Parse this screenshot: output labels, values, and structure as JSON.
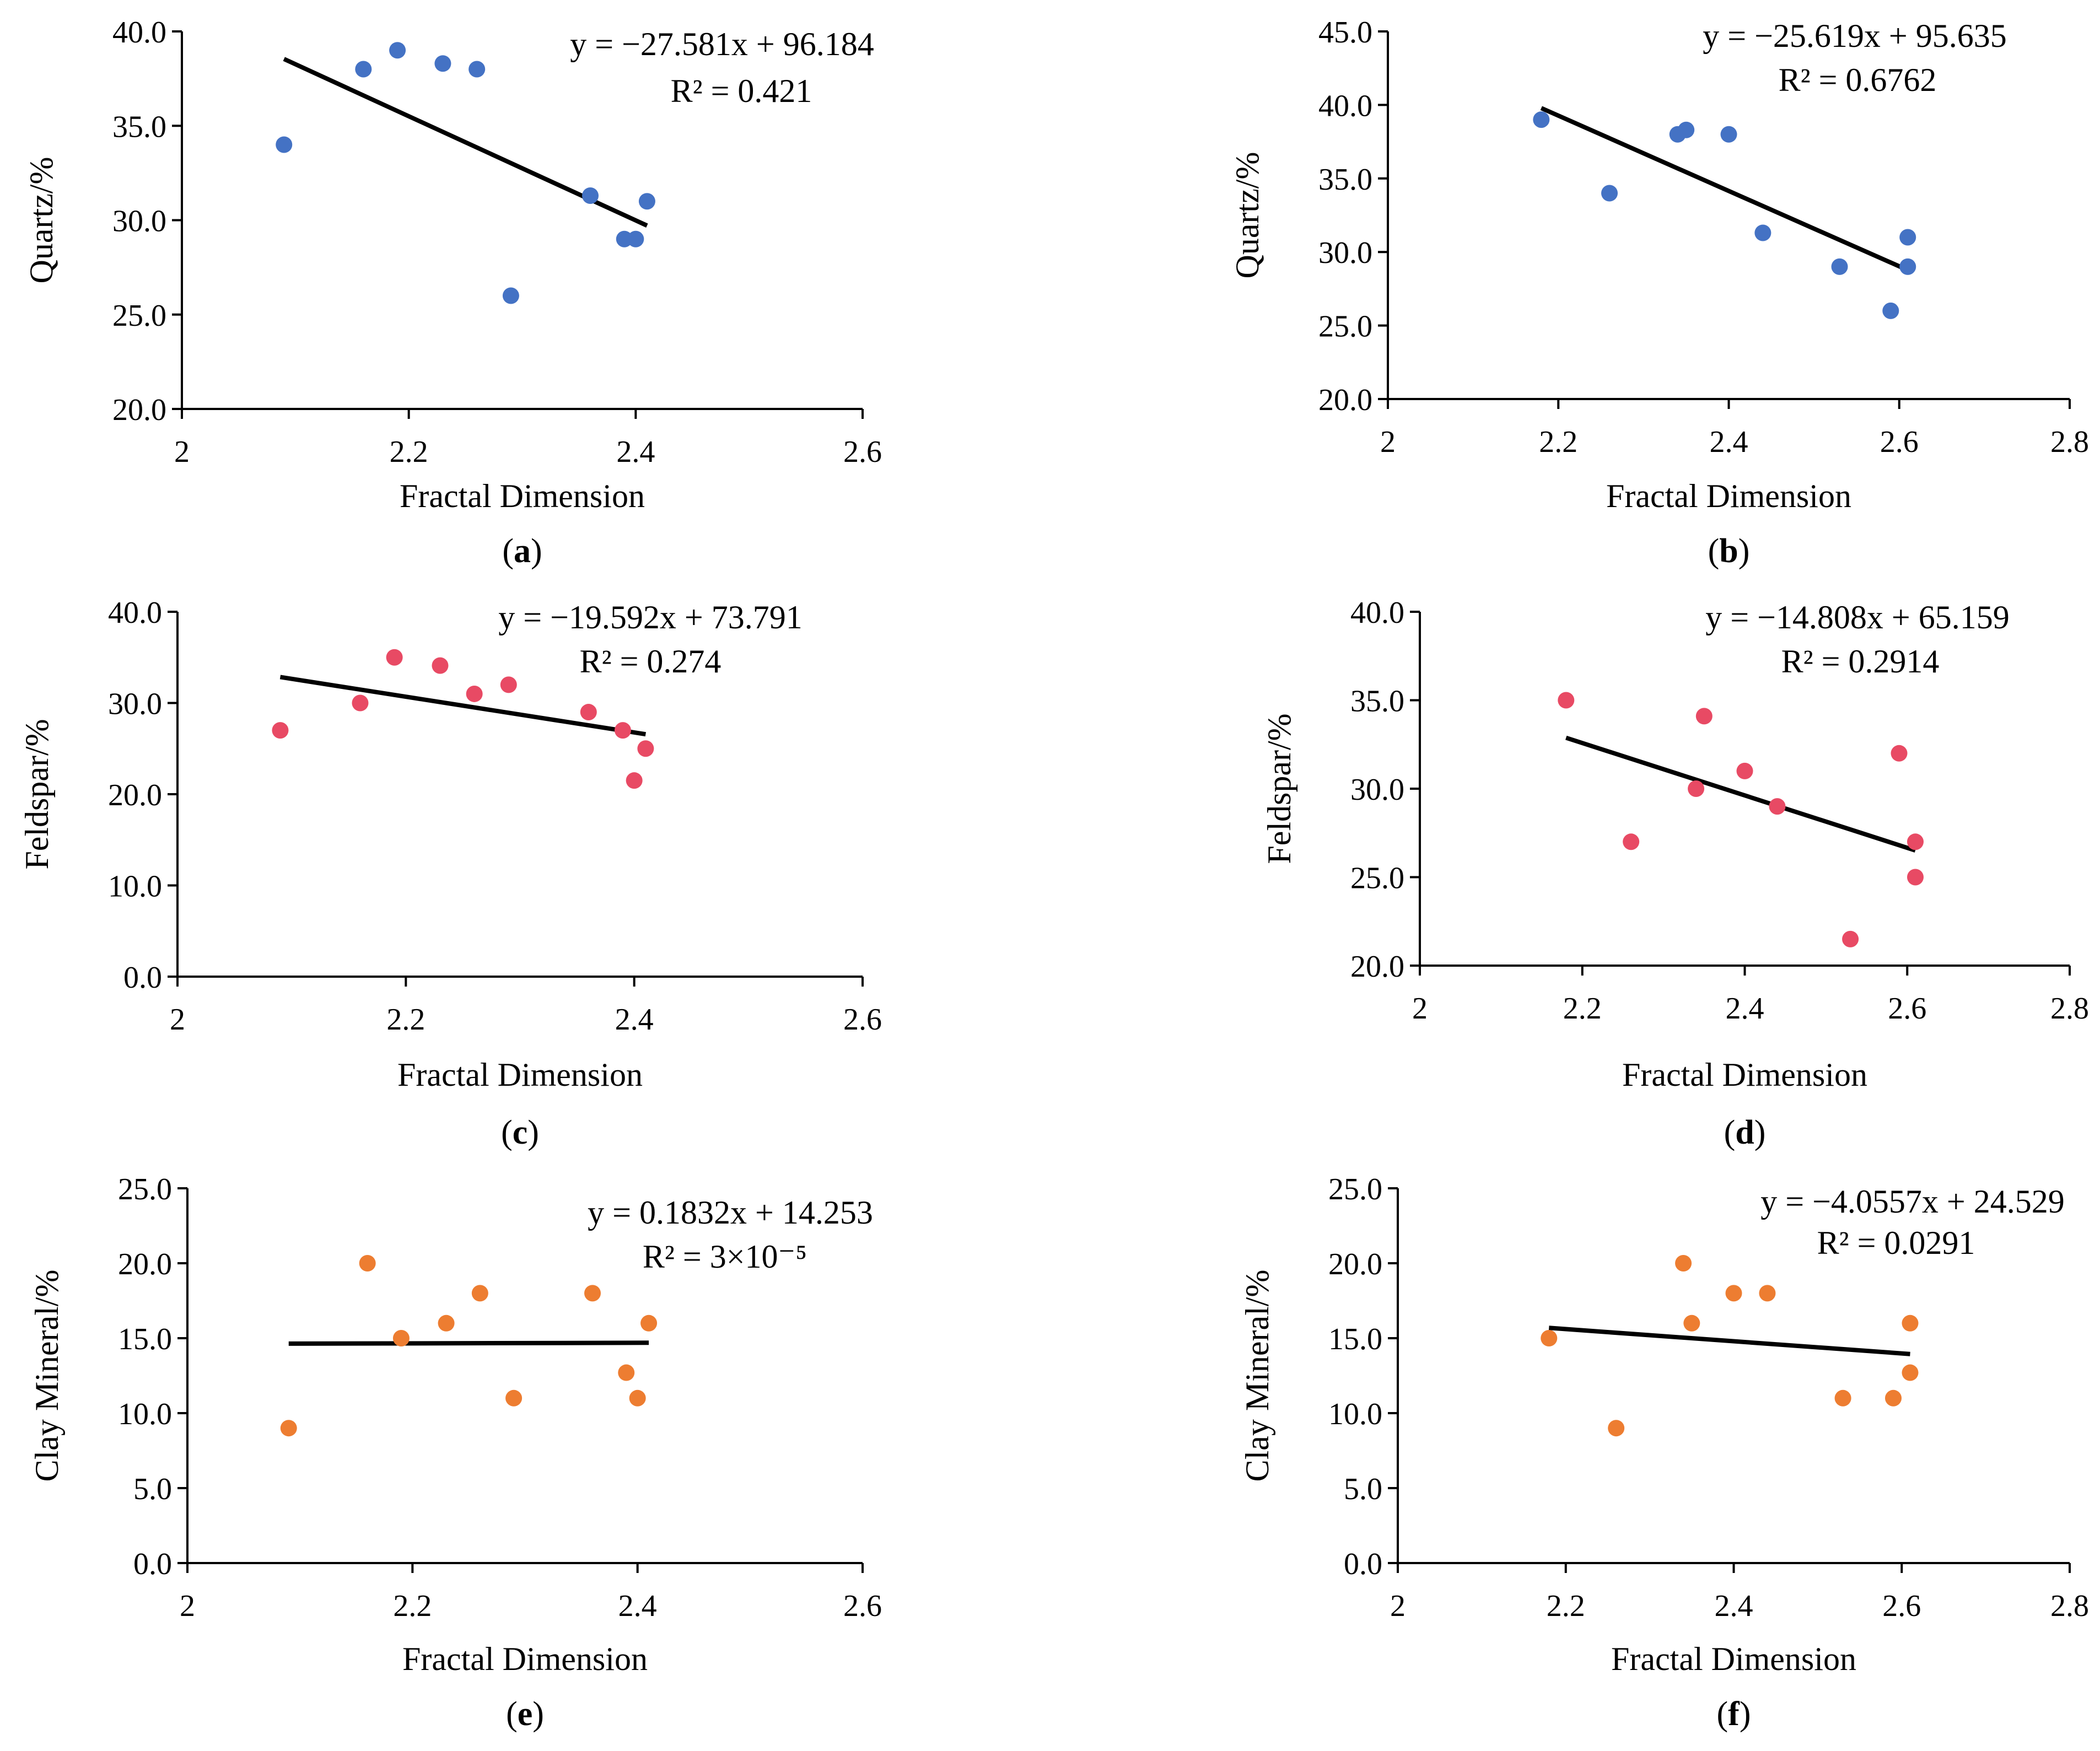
{
  "figure": {
    "colors": {
      "quartz": "#4472C4",
      "feldspar": "#E84A64",
      "clay": "#ED7D31",
      "trend": "#000000"
    }
  },
  "chart_data": [
    {
      "type": "scatter",
      "panel_label": "a",
      "xlabel": "Fractal Dimension",
      "ylabel": "Quartz/%",
      "xlim": [
        2,
        2.6
      ],
      "ylim": [
        20,
        40
      ],
      "xticks": [
        "2",
        "2.2",
        "2.4",
        "2.6"
      ],
      "yticks": [
        "20.0",
        "25.0",
        "30.0",
        "35.0",
        "40.0"
      ],
      "color": "#4472C4",
      "points": [
        {
          "x": 2.09,
          "y": 34.0
        },
        {
          "x": 2.16,
          "y": 38.0
        },
        {
          "x": 2.19,
          "y": 39.0
        },
        {
          "x": 2.23,
          "y": 38.3
        },
        {
          "x": 2.26,
          "y": 38.0
        },
        {
          "x": 2.29,
          "y": 26.0
        },
        {
          "x": 2.36,
          "y": 31.3
        },
        {
          "x": 2.39,
          "y": 29.0
        },
        {
          "x": 2.4,
          "y": 29.0
        },
        {
          "x": 2.41,
          "y": 31.0
        }
      ],
      "trendline": {
        "slope": -27.581,
        "intercept": 96.184,
        "x_range": [
          2.09,
          2.41
        ]
      },
      "equation": "y = −27.581x + 96.184",
      "r2": "R² = 0.421"
    },
    {
      "type": "scatter",
      "panel_label": "b",
      "xlabel": "Fractal Dimension",
      "ylabel": "Quartz/%",
      "xlim": [
        2,
        2.8
      ],
      "ylim": [
        20,
        45
      ],
      "xticks": [
        "2",
        "2.2",
        "2.4",
        "2.6",
        "2.8"
      ],
      "yticks": [
        "20.0",
        "25.0",
        "30.0",
        "35.0",
        "40.0",
        "45.0"
      ],
      "color": "#4472C4",
      "points": [
        {
          "x": 2.18,
          "y": 39.0
        },
        {
          "x": 2.26,
          "y": 34.0
        },
        {
          "x": 2.34,
          "y": 38.0
        },
        {
          "x": 2.35,
          "y": 38.3
        },
        {
          "x": 2.4,
          "y": 38.0
        },
        {
          "x": 2.44,
          "y": 31.3
        },
        {
          "x": 2.53,
          "y": 29.0
        },
        {
          "x": 2.59,
          "y": 26.0
        },
        {
          "x": 2.61,
          "y": 31.0
        },
        {
          "x": 2.61,
          "y": 29.0
        }
      ],
      "trendline": {
        "slope": -25.619,
        "intercept": 95.635,
        "x_range": [
          2.18,
          2.61
        ]
      },
      "equation": "y = −25.619x + 95.635",
      "r2": "R² = 0.6762"
    },
    {
      "type": "scatter",
      "panel_label": "c",
      "xlabel": "Fractal Dimension",
      "ylabel": "Feldspar/%",
      "xlim": [
        2,
        2.6
      ],
      "ylim": [
        0,
        40
      ],
      "xticks": [
        "2",
        "2.2",
        "2.4",
        "2.6"
      ],
      "yticks": [
        "0.0",
        "10.0",
        "20.0",
        "30.0",
        "40.0"
      ],
      "color": "#E84A64",
      "points": [
        {
          "x": 2.09,
          "y": 27.0
        },
        {
          "x": 2.16,
          "y": 30.0
        },
        {
          "x": 2.19,
          "y": 35.0
        },
        {
          "x": 2.23,
          "y": 34.1
        },
        {
          "x": 2.26,
          "y": 31.0
        },
        {
          "x": 2.29,
          "y": 32.0
        },
        {
          "x": 2.36,
          "y": 29.0
        },
        {
          "x": 2.39,
          "y": 27.0
        },
        {
          "x": 2.4,
          "y": 21.5
        },
        {
          "x": 2.41,
          "y": 25.0
        }
      ],
      "trendline": {
        "slope": -19.592,
        "intercept": 73.791,
        "x_range": [
          2.09,
          2.41
        ]
      },
      "equation": "y = −19.592x + 73.791",
      "r2": "R² = 0.274"
    },
    {
      "type": "scatter",
      "panel_label": "d",
      "xlabel": "Fractal Dimension",
      "ylabel": "Feldspar/%",
      "xlim": [
        2,
        2.8
      ],
      "ylim": [
        20,
        40
      ],
      "xticks": [
        "2",
        "2.2",
        "2.4",
        "2.6",
        "2.8"
      ],
      "yticks": [
        "20.0",
        "25.0",
        "30.0",
        "35.0",
        "40.0"
      ],
      "color": "#E84A64",
      "points": [
        {
          "x": 2.18,
          "y": 35.0
        },
        {
          "x": 2.26,
          "y": 27.0
        },
        {
          "x": 2.34,
          "y": 30.0
        },
        {
          "x": 2.35,
          "y": 34.1
        },
        {
          "x": 2.4,
          "y": 31.0
        },
        {
          "x": 2.44,
          "y": 29.0
        },
        {
          "x": 2.53,
          "y": 21.5
        },
        {
          "x": 2.59,
          "y": 32.0
        },
        {
          "x": 2.61,
          "y": 27.0
        },
        {
          "x": 2.61,
          "y": 25.0
        }
      ],
      "trendline": {
        "slope": -14.808,
        "intercept": 65.159,
        "x_range": [
          2.18,
          2.61
        ]
      },
      "equation": "y = −14.808x + 65.159",
      "r2": "R² = 0.2914"
    },
    {
      "type": "scatter",
      "panel_label": "e",
      "xlabel": "Fractal Dimension",
      "ylabel": "Clay Mineral/%",
      "xlim": [
        2,
        2.6
      ],
      "ylim": [
        0,
        25
      ],
      "xticks": [
        "2",
        "2.2",
        "2.4",
        "2.6"
      ],
      "yticks": [
        "0.0",
        "5.0",
        "10.0",
        "15.0",
        "20.0",
        "25.0"
      ],
      "color": "#ED7D31",
      "points": [
        {
          "x": 2.09,
          "y": 9.0
        },
        {
          "x": 2.16,
          "y": 20.0
        },
        {
          "x": 2.19,
          "y": 15.0
        },
        {
          "x": 2.23,
          "y": 16.0
        },
        {
          "x": 2.26,
          "y": 18.0
        },
        {
          "x": 2.29,
          "y": 11.0
        },
        {
          "x": 2.36,
          "y": 18.0
        },
        {
          "x": 2.39,
          "y": 12.7
        },
        {
          "x": 2.4,
          "y": 11.0
        },
        {
          "x": 2.41,
          "y": 16.0
        }
      ],
      "trendline": {
        "slope": 0.1832,
        "intercept": 14.253,
        "x_range": [
          2.09,
          2.41
        ]
      },
      "equation": "y = 0.1832x + 14.253",
      "r2": "R² = 3×10⁻⁵"
    },
    {
      "type": "scatter",
      "panel_label": "f",
      "xlabel": "Fractal Dimension",
      "ylabel": "Clay Mineral/%",
      "xlim": [
        2,
        2.8
      ],
      "ylim": [
        0,
        25
      ],
      "xticks": [
        "2",
        "2.2",
        "2.4",
        "2.6",
        "2.8"
      ],
      "yticks": [
        "0.0",
        "5.0",
        "10.0",
        "15.0",
        "20.0",
        "25.0"
      ],
      "color": "#ED7D31",
      "points": [
        {
          "x": 2.18,
          "y": 15.0
        },
        {
          "x": 2.26,
          "y": 9.0
        },
        {
          "x": 2.34,
          "y": 20.0
        },
        {
          "x": 2.35,
          "y": 16.0
        },
        {
          "x": 2.4,
          "y": 18.0
        },
        {
          "x": 2.44,
          "y": 18.0
        },
        {
          "x": 2.53,
          "y": 11.0
        },
        {
          "x": 2.59,
          "y": 11.0
        },
        {
          "x": 2.61,
          "y": 16.0
        },
        {
          "x": 2.61,
          "y": 12.7
        }
      ],
      "trendline": {
        "slope": -4.0557,
        "intercept": 24.529,
        "x_range": [
          2.18,
          2.61
        ]
      },
      "equation": "y = −4.0557x + 24.529",
      "r2": "R² = 0.0291"
    }
  ]
}
